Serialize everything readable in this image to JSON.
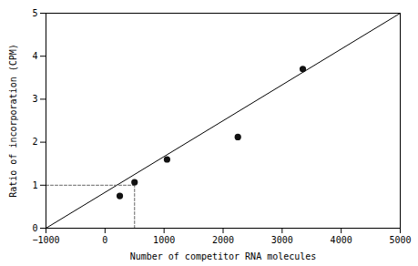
{
  "chart_data": {
    "type": "scatter",
    "xlabel": "Number of competitor RNA molecules",
    "ylabel": "Ratio of incorporation (CPM)",
    "xlim": [
      -1000,
      5000
    ],
    "ylim": [
      0,
      5
    ],
    "xticks": [
      -1000,
      0,
      1000,
      2000,
      3000,
      4000,
      5000
    ],
    "yticks": [
      0,
      1,
      2,
      3,
      4,
      5
    ],
    "grid": false,
    "series": [
      {
        "type": "line",
        "line_style": "solid",
        "color": "#000000",
        "x": [
          -1000,
          5000
        ],
        "values": [
          0.0,
          5.0
        ]
      },
      {
        "type": "line",
        "line_style": "dashed",
        "color": "#666666",
        "x": [
          -1000,
          500
        ],
        "values": [
          1.0,
          1.0
        ]
      },
      {
        "type": "line",
        "line_style": "dashed",
        "color": "#666666",
        "x": [
          500,
          500
        ],
        "values": [
          0.0,
          1.0
        ]
      },
      {
        "type": "scatter",
        "marker": "circle",
        "color": "#111111",
        "x": [
          250,
          500,
          1050,
          2250,
          3350
        ],
        "values": [
          0.75,
          1.07,
          1.6,
          2.12,
          3.7
        ]
      }
    ]
  }
}
